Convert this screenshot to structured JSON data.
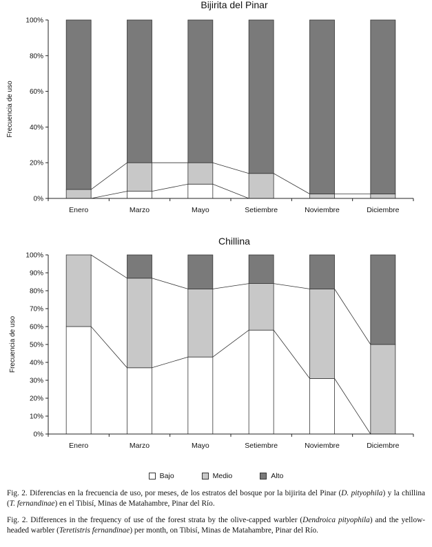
{
  "chart_data": [
    {
      "type": "bar",
      "stacked": true,
      "title": "Bijirita del Pinar",
      "ylabel": "Frecuencia de uso",
      "xlabel": "",
      "ylim": [
        0,
        100
      ],
      "yticks": [
        "0%",
        "20%",
        "40%",
        "60%",
        "80%",
        "100%"
      ],
      "ytick_values": [
        0,
        20,
        40,
        60,
        80,
        100
      ],
      "categories": [
        "Enero",
        "Marzo",
        "Mayo",
        "Setiembre",
        "Noviembre",
        "Diciembre"
      ],
      "series": [
        {
          "name": "Bajo",
          "values": [
            0,
            4,
            8,
            0,
            0,
            0
          ],
          "color": "#ffffff"
        },
        {
          "name": "Medio",
          "values": [
            5,
            16,
            12,
            14,
            2.5,
            2.5
          ],
          "color": "#c8c8c8"
        },
        {
          "name": "Alto",
          "values": [
            95,
            80,
            80,
            86,
            97.5,
            97.5
          ],
          "color": "#7a7a7a"
        }
      ],
      "grid": false
    },
    {
      "type": "bar",
      "stacked": true,
      "title": "Chillina",
      "ylabel": "Frecuencia de uso",
      "xlabel": "",
      "ylim": [
        0,
        100
      ],
      "yticks": [
        "0%",
        "10%",
        "20%",
        "30%",
        "40%",
        "50%",
        "60%",
        "70%",
        "80%",
        "90%",
        "100%"
      ],
      "ytick_values": [
        0,
        10,
        20,
        30,
        40,
        50,
        60,
        70,
        80,
        90,
        100
      ],
      "categories": [
        "Enero",
        "Marzo",
        "Mayo",
        "Setiembre",
        "Noviembre",
        "Diciembre"
      ],
      "series": [
        {
          "name": "Bajo",
          "values": [
            60,
            37,
            43,
            58,
            31,
            0
          ],
          "color": "#ffffff"
        },
        {
          "name": "Medio",
          "values": [
            40,
            50,
            38,
            26,
            50,
            50
          ],
          "color": "#c8c8c8"
        },
        {
          "name": "Alto",
          "values": [
            0,
            13,
            19,
            16,
            19,
            50
          ],
          "color": "#7a7a7a"
        }
      ],
      "grid": false
    }
  ],
  "legend": {
    "placement": "bottom-center",
    "items": [
      {
        "label": "Bajo",
        "color": "#ffffff"
      },
      {
        "label": "Medio",
        "color": "#c8c8c8"
      },
      {
        "label": "Alto",
        "color": "#7a7a7a"
      }
    ]
  },
  "captions": {
    "es": {
      "prefix": "Fig. 2. Diferencias en la frecuencia de uso, por meses, de los estratos del bosque por la bijirita del Pinar (",
      "em1": "D. pityophila",
      "mid": ") y la chillina (",
      "em2": "T. fernandinae",
      "suffix": ") en el Tibisí, Minas de Matahambre, Pinar del Río."
    },
    "en": {
      "prefix": "Fig. 2. Differences in the frequency of use of the forest strata by the olive-capped warbler (",
      "em1": "Dendroica pityophila",
      "mid": ") and the yellow-headed warbler (",
      "em2": "Teretistris fernandinae",
      "suffix": ") per month, on Tibisí, Minas de Matahambre, Pinar del Río."
    }
  }
}
